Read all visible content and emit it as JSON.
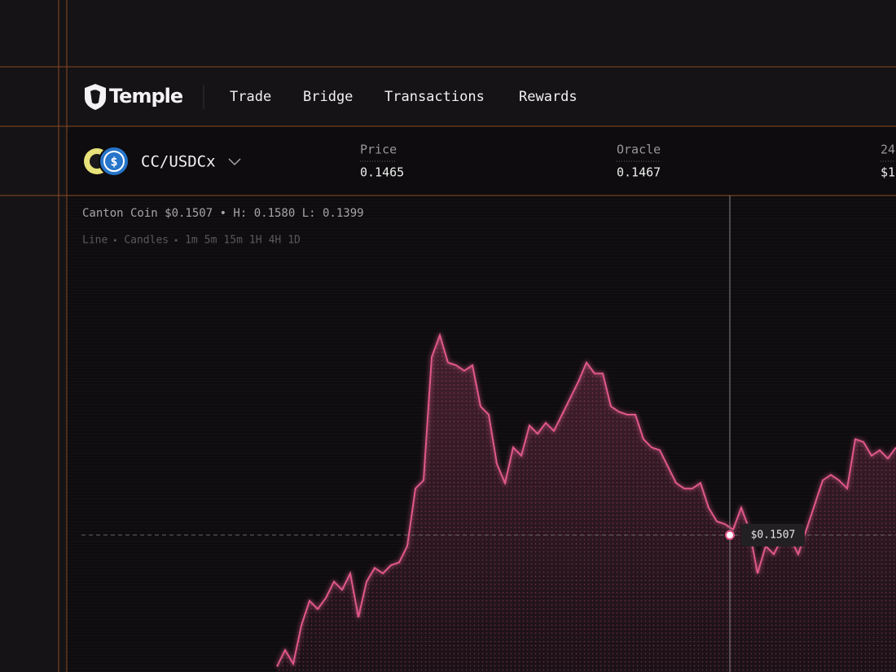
{
  "nav": {
    "brand": "Temple",
    "items": [
      "Trade",
      "Bridge",
      "Transactions",
      "Rewards"
    ]
  },
  "pair": {
    "name": "CC/USDCx",
    "stats": [
      {
        "label": "Price",
        "value": "0.1465"
      },
      {
        "label": "Oracle",
        "value": "0.1467"
      },
      {
        "label": "24",
        "value": "$1"
      }
    ]
  },
  "chart_info": {
    "summary": "Canton Coin $0.1507 • H: 0.1580 L: 0.1399",
    "modes": [
      "Line",
      "Candles"
    ],
    "intervals": [
      "1m",
      "5m",
      "15m",
      "1H",
      "4H",
      "1D"
    ]
  },
  "chart_data": {
    "type": "line",
    "color": "#e0588a",
    "values": [
      0.1459,
      0.1465,
      0.146,
      0.1474,
      0.1483,
      0.148,
      0.1484,
      0.149,
      0.1487,
      0.1493,
      0.1477,
      0.149,
      0.1495,
      0.1493,
      0.1496,
      0.1497,
      0.1503,
      0.1524,
      0.1527,
      0.1572,
      0.158,
      0.157,
      0.1569,
      0.1567,
      0.1569,
      0.1554,
      0.1551,
      0.1533,
      0.1526,
      0.1539,
      0.1536,
      0.1547,
      0.1544,
      0.1548,
      0.1545,
      0.1551,
      0.1557,
      0.1563,
      0.157,
      0.1566,
      0.1566,
      0.1554,
      0.1552,
      0.1551,
      0.1551,
      0.1542,
      0.1539,
      0.1538,
      0.1532,
      0.1526,
      0.1524,
      0.1524,
      0.1526,
      0.1517,
      0.1512,
      0.1511,
      0.1509,
      0.1517,
      0.1509,
      0.1493,
      0.1503,
      0.15,
      0.1506,
      0.1506,
      0.15,
      0.1509,
      0.1518,
      0.1527,
      0.1529,
      0.1527,
      0.1524,
      0.1542,
      0.1541,
      0.1536,
      0.1538,
      0.1535,
      0.1539
    ],
    "ylim": [
      0.1457,
      0.1631
    ],
    "hover": {
      "value": 0.1507,
      "label": "$0.1507"
    }
  }
}
